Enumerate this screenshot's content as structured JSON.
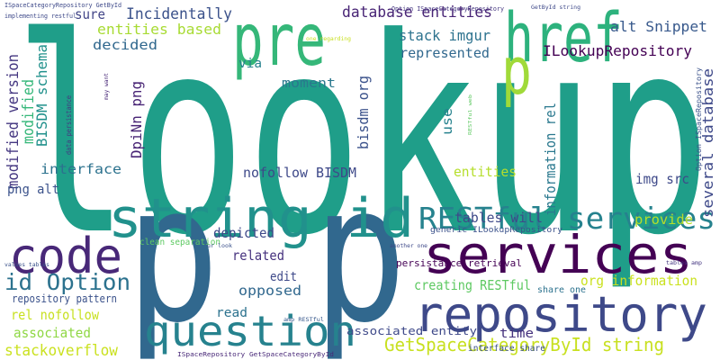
{
  "words": [
    "lookup",
    "p p",
    "pre",
    "href",
    "p",
    "string id",
    "code",
    "services",
    "repository",
    "question",
    "RESTful services",
    "id Option",
    "GetSpaceCategoryById string",
    "database entities",
    "Incidentally",
    "sure",
    "entities based",
    "decided",
    "stack imgur",
    "represented",
    "alt Snippet",
    "ILookupRepository",
    "via",
    "moment",
    "modified version",
    "modified",
    "BISDM schema",
    "DpiNn png",
    "bisdm org",
    "use",
    "information rel",
    "several database",
    "img src",
    "provide",
    "interface",
    "nofollow BISDM",
    "entities",
    "tables will",
    "png alt",
    "depicted",
    "related",
    "edit",
    "opposed",
    "read",
    "time",
    "creating RESTful",
    "org information",
    "rel nofollow",
    "associated",
    "stackoverflow",
    "repository pattern",
    "associated entity",
    "persistance retrieval",
    "generic ILookupRepository",
    "clean separation",
    "share one",
    "interface share",
    "ISpaceRepository GetSpaceCategoryById",
    "amp RESTful",
    "another one",
    "ur look",
    "values tables",
    "tables amp",
    "ISpaceCategoryRepository GetById",
    "implementing restful",
    "Option ISpaceCategoryRepository",
    "GetById string",
    "one regarding",
    "may want",
    "data persistance",
    "RESTful web",
    "Option ISpaceRepository"
  ]
}
